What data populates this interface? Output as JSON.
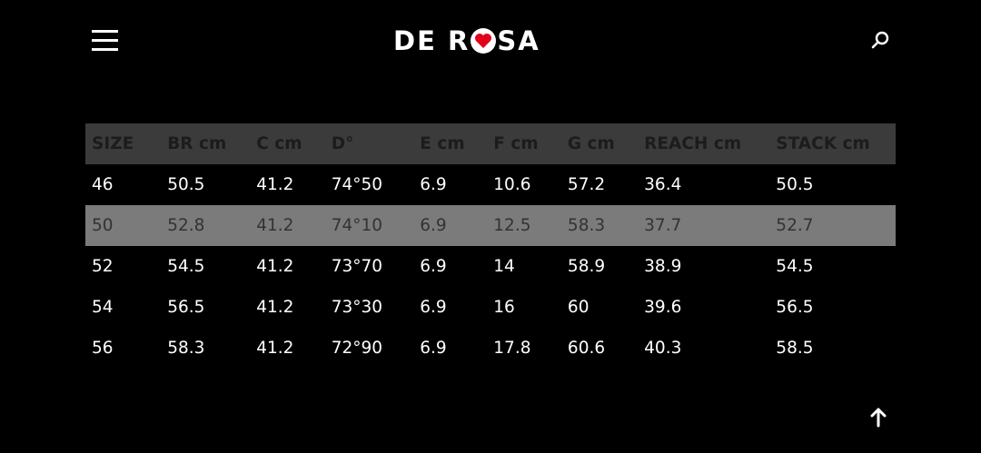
{
  "header": {
    "logo": "DE ROSA",
    "brand_color": "#e3001b",
    "menu_icon": "hamburger-icon",
    "search_icon": "search-icon"
  },
  "table": {
    "columns": [
      "SIZE",
      "BR cm",
      "C cm",
      "D°",
      "E cm",
      "F cm",
      "G cm",
      "REACH cm",
      "STACK cm"
    ],
    "rows": [
      [
        "46",
        "50.5",
        "41.2",
        "74°50",
        "6.9",
        "10.6",
        "57.2",
        "36.4",
        "50.5"
      ],
      [
        "50",
        "52.8",
        "41.2",
        "74°10",
        "6.9",
        "12.5",
        "58.3",
        "37.7",
        "52.7"
      ],
      [
        "52",
        "54.5",
        "41.2",
        "73°70",
        "6.9",
        "14",
        "58.9",
        "38.9",
        "54.5"
      ],
      [
        "54",
        "56.5",
        "41.2",
        "73°30",
        "6.9",
        "16",
        "60",
        "39.6",
        "56.5"
      ],
      [
        "56",
        "58.3",
        "41.2",
        "72°90",
        "6.9",
        "17.8",
        "60.6",
        "40.3",
        "58.5"
      ]
    ],
    "highlighted_row": 1
  },
  "scroll_top_icon": "arrow-up-icon"
}
